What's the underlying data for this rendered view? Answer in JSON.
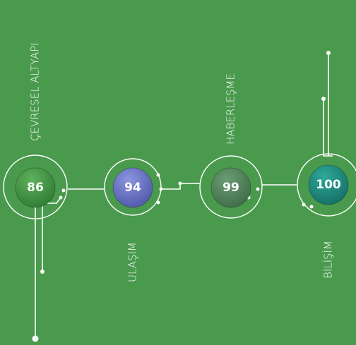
{
  "nodes": [
    {
      "value": "86",
      "label": "ÇEVRESEL ALTYAPI"
    },
    {
      "value": "94",
      "label": "ULAŞIM"
    },
    {
      "value": "99",
      "label": "HABERLEŞME"
    },
    {
      "value": "100",
      "label": "BİLİŞİM"
    }
  ]
}
